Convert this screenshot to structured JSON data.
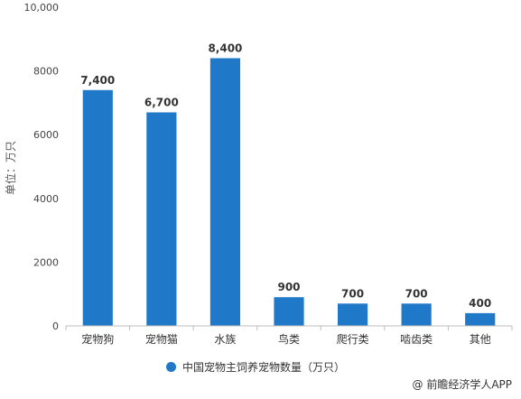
{
  "chart_data": {
    "type": "bar",
    "categories": [
      "宠物狗",
      "宠物猫",
      "水族",
      "鸟类",
      "爬行类",
      "啮齿类",
      "其他"
    ],
    "series": [
      {
        "name": "中国宠物主饲养宠物数量（万只）",
        "values": [
          7400,
          6700,
          8400,
          900,
          700,
          700,
          400
        ],
        "labels": [
          "7,400",
          "6,700",
          "8,400",
          "900",
          "700",
          "700",
          "400"
        ],
        "color": "#1f78c8"
      }
    ],
    "ylabel": "单位：万只",
    "ylim": [
      0,
      10000
    ],
    "yticks": [
      0,
      2000,
      4000,
      6000,
      8000,
      10000
    ],
    "ytick_labels": [
      "0",
      "2000",
      "4000",
      "6000",
      "8000",
      "10,000"
    ],
    "grid": false,
    "legend_position": "bottom"
  },
  "footer": {
    "source": "@ 前瞻经济学人APP"
  }
}
